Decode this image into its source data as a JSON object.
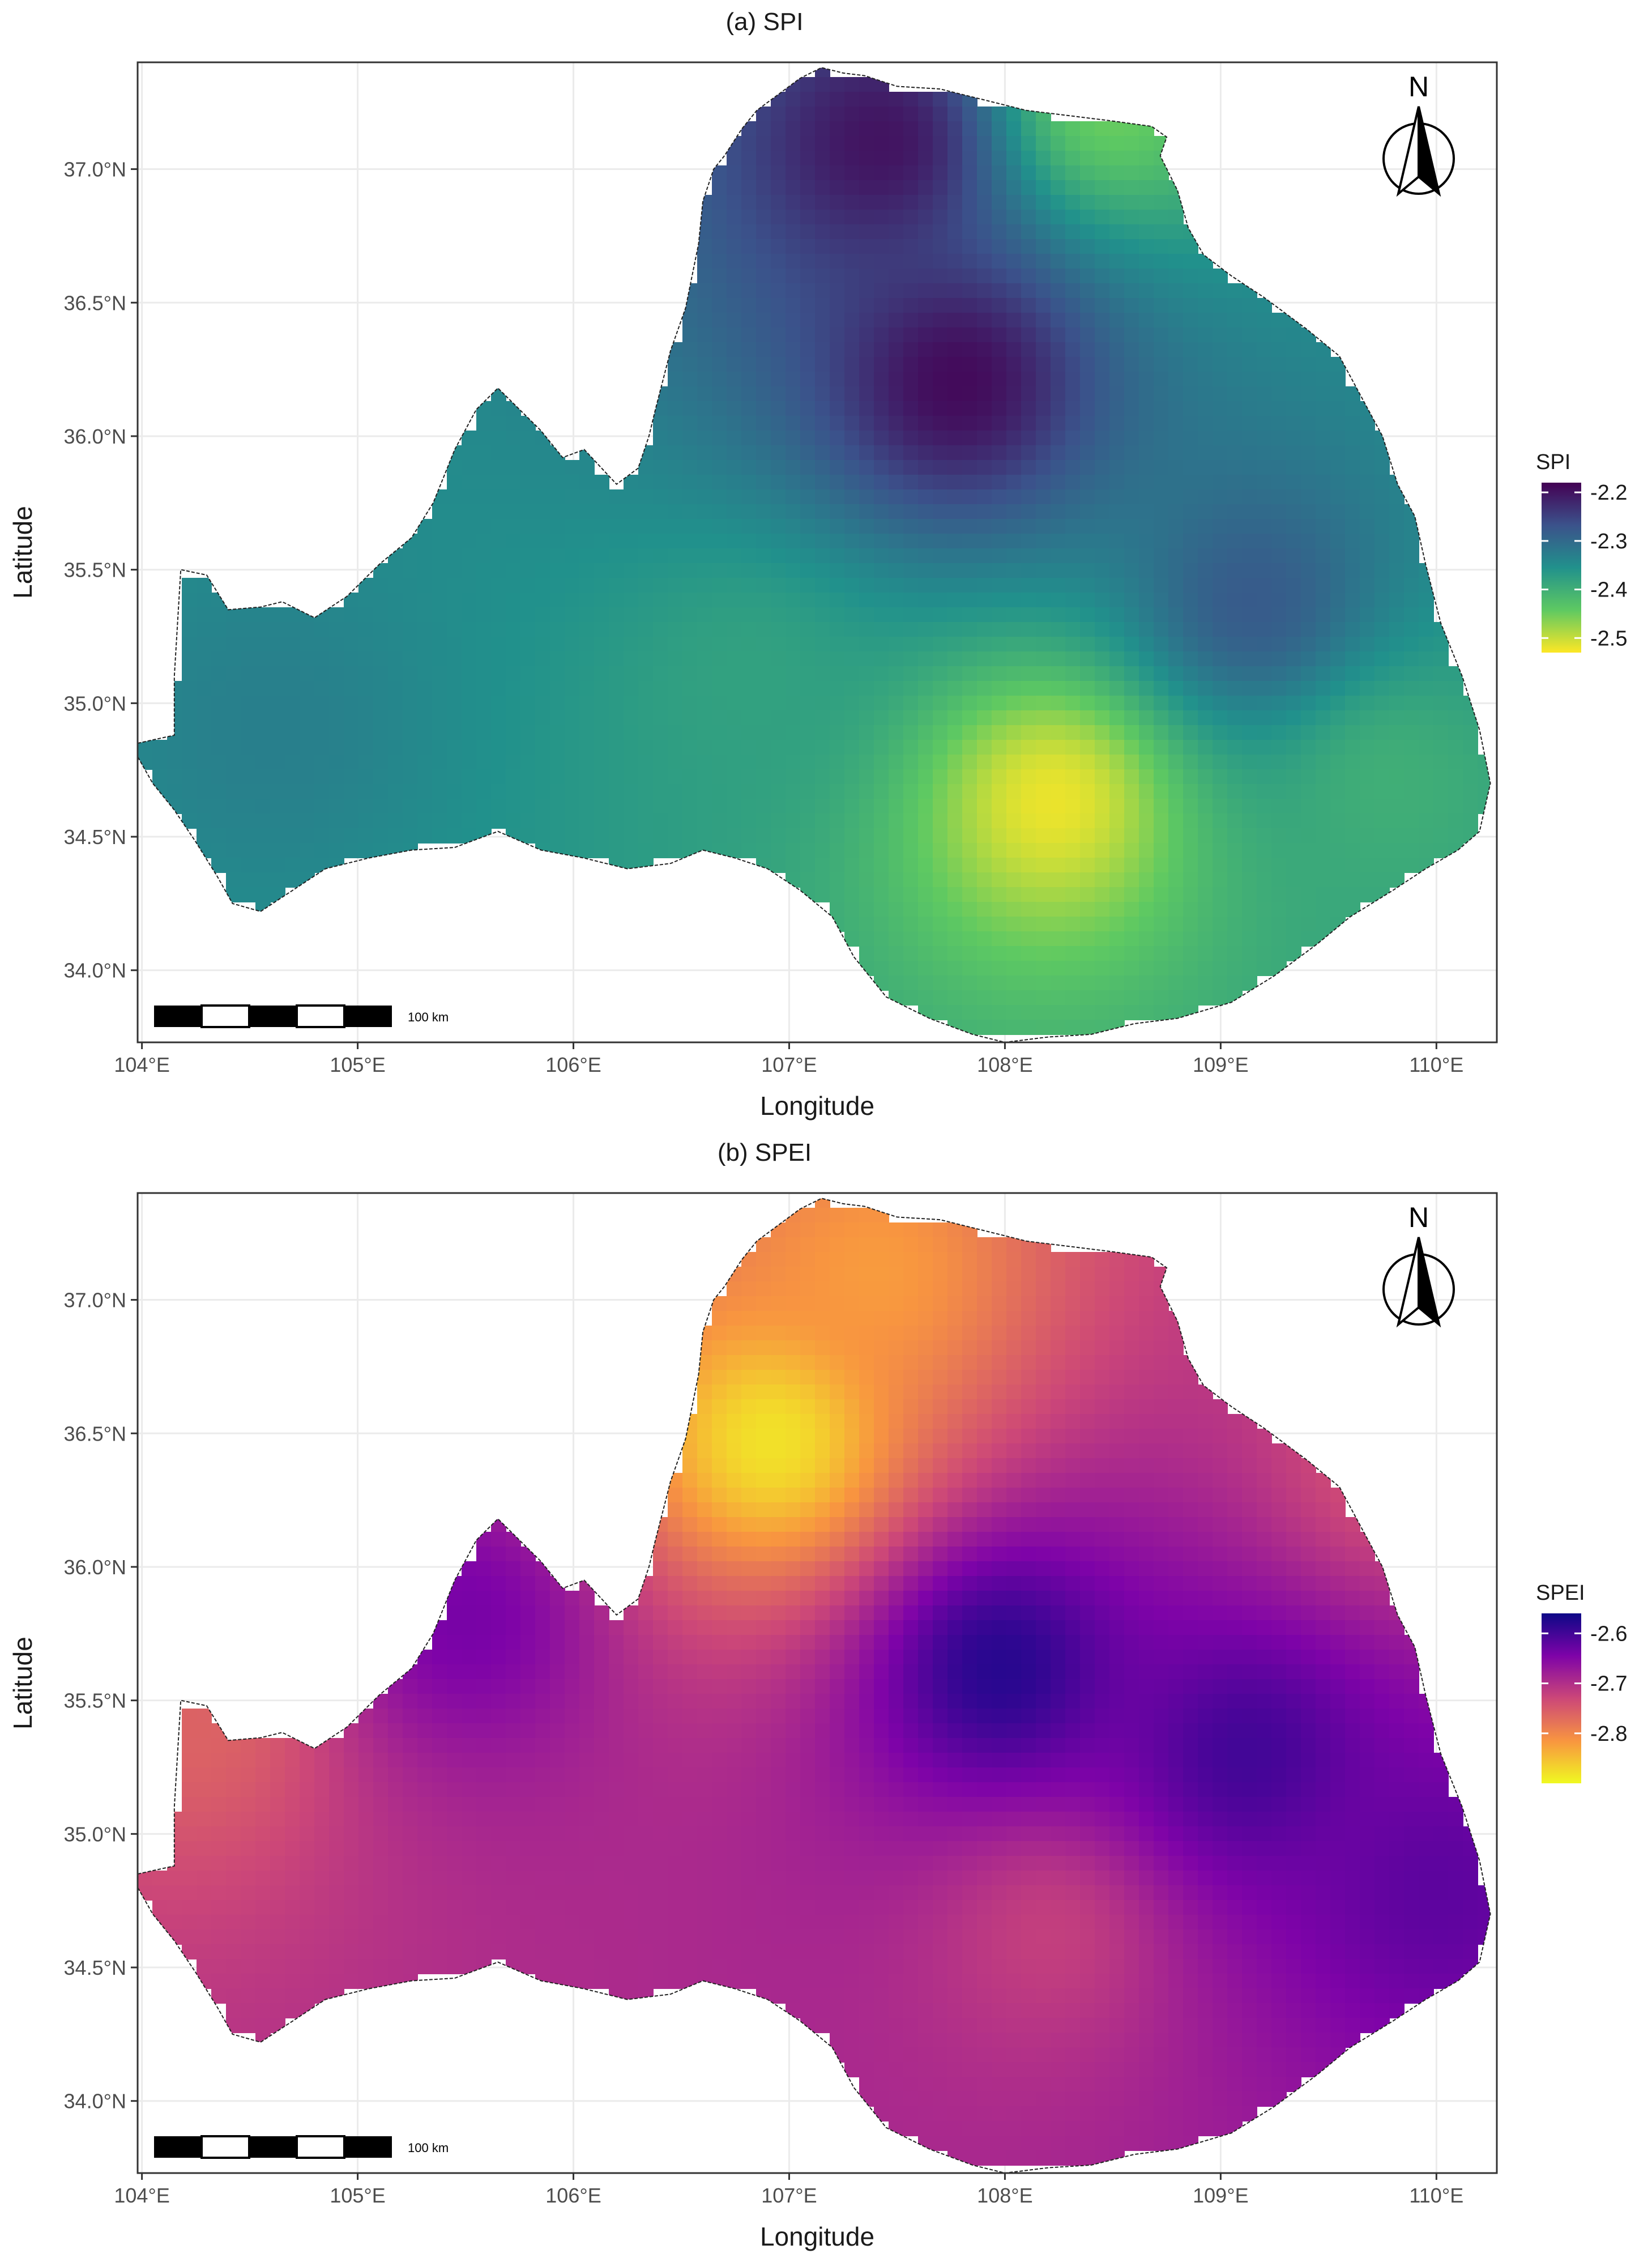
{
  "panels": [
    {
      "id": "spi",
      "title": "(a) SPI",
      "legend_title": "SPI",
      "legend_ticks": [
        "-2.2",
        "-2.3",
        "-2.4",
        "-2.5"
      ],
      "colors": [
        "#440154",
        "#3b528b",
        "#21918c",
        "#5ec962",
        "#fde725"
      ],
      "hotspots": [
        {
          "lon": 107.42,
          "lat": 37.1,
          "value": -2.2
        },
        {
          "lon": 107.78,
          "lat": 36.2,
          "value": -2.19
        },
        {
          "lon": 109.15,
          "lat": 35.38,
          "value": -2.28
        },
        {
          "lon": 108.22,
          "lat": 34.63,
          "value": -2.52
        },
        {
          "lon": 108.5,
          "lat": 37.25,
          "value": -2.45
        },
        {
          "lon": 104.6,
          "lat": 34.9,
          "value": -2.33
        },
        {
          "lon": 106.8,
          "lat": 35.1,
          "value": -2.38
        },
        {
          "lon": 109.8,
          "lat": 34.7,
          "value": -2.4
        }
      ],
      "value_range": [
        -2.53,
        -2.18
      ],
      "base_value": -2.37
    },
    {
      "id": "spei",
      "title": "(b) SPEI",
      "legend_title": "SPEI",
      "legend_ticks": [
        "-2.6",
        "-2.7",
        "-2.8"
      ],
      "colors": [
        "#0d0887",
        "#7e03a8",
        "#cc4778",
        "#f89540",
        "#f0f921"
      ],
      "hotspots": [
        {
          "lon": 106.92,
          "lat": 36.47,
          "value": -2.88
        },
        {
          "lon": 107.4,
          "lat": 37.1,
          "value": -2.82
        },
        {
          "lon": 107.98,
          "lat": 35.62,
          "value": -2.58
        },
        {
          "lon": 109.12,
          "lat": 35.3,
          "value": -2.6
        },
        {
          "lon": 108.2,
          "lat": 34.62,
          "value": -2.72
        },
        {
          "lon": 104.25,
          "lat": 35.4,
          "value": -2.76
        },
        {
          "lon": 105.5,
          "lat": 35.8,
          "value": -2.64
        },
        {
          "lon": 110.0,
          "lat": 34.8,
          "value": -2.62
        },
        {
          "lon": 109.8,
          "lat": 36.4,
          "value": -2.74
        }
      ],
      "value_range": [
        -2.9,
        -2.56
      ],
      "base_value": -2.69
    }
  ],
  "axes": {
    "x_title": "Longitude",
    "y_title": "Latitude",
    "x_ticks": [
      "104°E",
      "105°E",
      "106°E",
      "107°E",
      "108°E",
      "109°E",
      "110°E"
    ],
    "x_tick_values": [
      104,
      105,
      106,
      107,
      108,
      109,
      110
    ],
    "y_ticks": [
      "37.0°N",
      "36.5°N",
      "36.0°N",
      "35.5°N",
      "35.0°N",
      "34.5°N",
      "34.0°N"
    ],
    "y_tick_values": [
      37.0,
      36.5,
      36.0,
      35.5,
      35.0,
      34.5,
      34.0
    ],
    "x_range": [
      103.98,
      110.28
    ],
    "y_range": [
      33.73,
      37.4
    ]
  },
  "north_arrow_label": "N",
  "scale_bar_label": "100 km",
  "region_outline": [
    [
      103.98,
      34.85
    ],
    [
      104.15,
      34.88
    ],
    [
      104.15,
      35.1
    ],
    [
      104.18,
      35.5
    ],
    [
      104.3,
      35.48
    ],
    [
      104.4,
      35.35
    ],
    [
      104.55,
      35.36
    ],
    [
      104.65,
      35.38
    ],
    [
      104.8,
      35.32
    ],
    [
      104.95,
      35.4
    ],
    [
      105.1,
      35.52
    ],
    [
      105.25,
      35.62
    ],
    [
      105.35,
      35.75
    ],
    [
      105.45,
      35.95
    ],
    [
      105.55,
      36.1
    ],
    [
      105.65,
      36.18
    ],
    [
      105.75,
      36.1
    ],
    [
      105.85,
      36.02
    ],
    [
      105.95,
      35.92
    ],
    [
      106.05,
      35.95
    ],
    [
      106.2,
      35.82
    ],
    [
      106.3,
      35.88
    ],
    [
      106.35,
      36.0
    ],
    [
      106.38,
      36.1
    ],
    [
      106.45,
      36.32
    ],
    [
      106.52,
      36.48
    ],
    [
      106.55,
      36.6
    ],
    [
      106.58,
      36.72
    ],
    [
      106.6,
      36.88
    ],
    [
      106.65,
      37.0
    ],
    [
      106.7,
      37.05
    ],
    [
      106.78,
      37.15
    ],
    [
      106.85,
      37.22
    ],
    [
      106.95,
      37.28
    ],
    [
      107.05,
      37.34
    ],
    [
      107.15,
      37.38
    ],
    [
      107.25,
      37.36
    ],
    [
      107.35,
      37.35
    ],
    [
      107.5,
      37.31
    ],
    [
      107.7,
      37.3
    ],
    [
      107.9,
      37.26
    ],
    [
      108.1,
      37.22
    ],
    [
      108.3,
      37.2
    ],
    [
      108.5,
      37.18
    ],
    [
      108.68,
      37.16
    ],
    [
      108.75,
      37.12
    ],
    [
      108.72,
      37.05
    ],
    [
      108.8,
      36.92
    ],
    [
      108.85,
      36.78
    ],
    [
      108.92,
      36.68
    ],
    [
      109.05,
      36.6
    ],
    [
      109.2,
      36.52
    ],
    [
      109.4,
      36.4
    ],
    [
      109.55,
      36.3
    ],
    [
      109.65,
      36.15
    ],
    [
      109.75,
      36.0
    ],
    [
      109.82,
      35.82
    ],
    [
      109.9,
      35.7
    ],
    [
      109.95,
      35.52
    ],
    [
      110.02,
      35.3
    ],
    [
      110.12,
      35.1
    ],
    [
      110.2,
      34.9
    ],
    [
      110.25,
      34.7
    ],
    [
      110.2,
      34.52
    ],
    [
      110.1,
      34.45
    ],
    [
      109.95,
      34.38
    ],
    [
      109.8,
      34.3
    ],
    [
      109.6,
      34.2
    ],
    [
      109.45,
      34.1
    ],
    [
      109.25,
      33.98
    ],
    [
      109.05,
      33.88
    ],
    [
      108.8,
      33.82
    ],
    [
      108.6,
      33.8
    ],
    [
      108.4,
      33.76
    ],
    [
      108.2,
      33.75
    ],
    [
      108.0,
      33.73
    ],
    [
      107.85,
      33.76
    ],
    [
      107.65,
      33.82
    ],
    [
      107.45,
      33.9
    ],
    [
      107.3,
      34.05
    ],
    [
      107.2,
      34.2
    ],
    [
      107.05,
      34.3
    ],
    [
      106.9,
      34.38
    ],
    [
      106.75,
      34.42
    ],
    [
      106.6,
      34.45
    ],
    [
      106.45,
      34.4
    ],
    [
      106.25,
      34.38
    ],
    [
      106.05,
      34.42
    ],
    [
      105.85,
      34.45
    ],
    [
      105.65,
      34.52
    ],
    [
      105.45,
      34.46
    ],
    [
      105.25,
      34.45
    ],
    [
      105.05,
      34.42
    ],
    [
      104.85,
      34.38
    ],
    [
      104.7,
      34.3
    ],
    [
      104.55,
      34.22
    ],
    [
      104.42,
      34.25
    ],
    [
      104.35,
      34.35
    ],
    [
      104.25,
      34.48
    ],
    [
      104.15,
      34.6
    ],
    [
      104.05,
      34.7
    ],
    [
      103.98,
      34.8
    ]
  ]
}
